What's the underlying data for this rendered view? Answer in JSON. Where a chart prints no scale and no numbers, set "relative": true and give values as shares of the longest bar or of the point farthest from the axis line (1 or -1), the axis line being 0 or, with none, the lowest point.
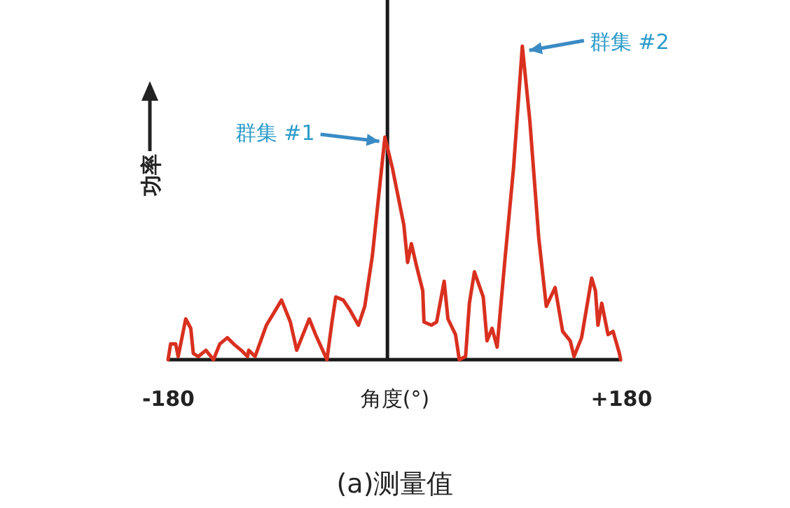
{
  "chart_data": {
    "type": "line",
    "xlabel": "角度(°)",
    "ylabel": "功率",
    "relative": true,
    "tick_labels": "x",
    "line_style": "solid",
    "marker": "none",
    "xlim": [
      -180,
      180
    ],
    "xticks": [
      -180,
      {
        "value": 180,
        "label": "+180"
      }
    ],
    "ref_lines": [
      {
        "axis": "x",
        "value": -6,
        "color": "#1a1a1a"
      }
    ],
    "x": [
      -180,
      -178,
      -174,
      -172,
      -166,
      -162,
      -160,
      -156,
      -150,
      -144,
      -139,
      -133,
      -128,
      -122,
      -117,
      -116,
      -111,
      -102,
      -90,
      -83,
      -78,
      -72,
      -68,
      -63,
      -54,
      -50,
      -47,
      -41,
      -36,
      -29,
      -24,
      -21,
      -18,
      -8,
      -2,
      7,
      10,
      13,
      17,
      22,
      23,
      29,
      33,
      39,
      42,
      48,
      51,
      56,
      59,
      63,
      70,
      73,
      77,
      81,
      87,
      94,
      101,
      107,
      114,
      120,
      127,
      133,
      139,
      142,
      148,
      156,
      159,
      161,
      164,
      169,
      173,
      178,
      179
    ],
    "series": [
      {
        "color": "#d9301f",
        "values": [
          0,
          0.05,
          0.05,
          0.01,
          0.13,
          0.1,
          0.02,
          0.01,
          0.03,
          0,
          0.05,
          0.07,
          0.05,
          0.03,
          0.01,
          0.03,
          0.01,
          0.11,
          0.19,
          0.12,
          0.03,
          0.09,
          0.13,
          0.08,
          0,
          0.12,
          0.2,
          0.19,
          0.16,
          0.11,
          0.17,
          0.25,
          0.33,
          0.71,
          0.61,
          0.43,
          0.31,
          0.37,
          0.3,
          0.22,
          0.12,
          0.11,
          0.12,
          0.25,
          0.13,
          0.08,
          0,
          0.01,
          0.18,
          0.28,
          0.2,
          0.06,
          0.1,
          0.04,
          0.31,
          0.61,
          1,
          0.76,
          0.39,
          0.17,
          0.23,
          0.09,
          0.06,
          0.01,
          0.07,
          0.26,
          0.22,
          0.11,
          0.18,
          0.08,
          0.09,
          0.02,
          0
        ]
      }
    ],
    "annotations": [
      {
        "text": "群集 #1",
        "x": -8,
        "y": 0.71
      },
      {
        "text": "群集 #2",
        "x": 101,
        "y": 1
      },
      "(a)测量值"
    ]
  }
}
